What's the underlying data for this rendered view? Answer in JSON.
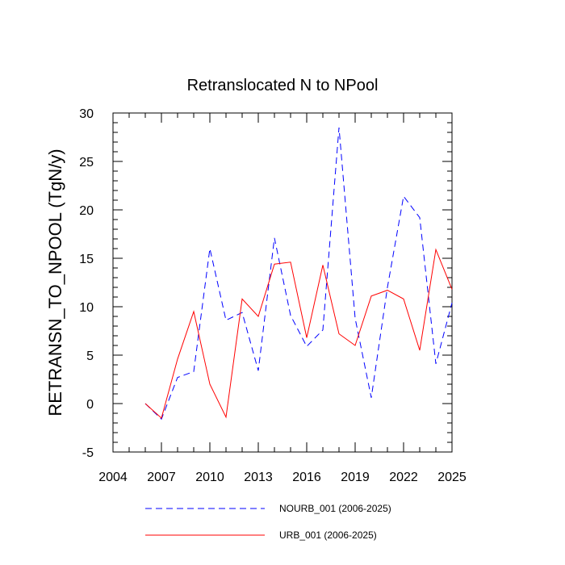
{
  "chart_data": {
    "type": "line",
    "title": "Retranslocated N to NPool",
    "xlabel": "",
    "ylabel": "RETRANSN_TO_NPOOL  (TgN/y)",
    "xlim": [
      2004,
      2025
    ],
    "ylim": [
      -5,
      30
    ],
    "xticks": [
      2004,
      2007,
      2010,
      2013,
      2016,
      2019,
      2022,
      2025
    ],
    "yticks": [
      -5,
      0,
      5,
      10,
      15,
      20,
      25,
      30
    ],
    "x": [
      2006,
      2007,
      2008,
      2009,
      2010,
      2011,
      2012,
      2013,
      2014,
      2015,
      2016,
      2017,
      2018,
      2019,
      2020,
      2021,
      2022,
      2023,
      2024,
      2025
    ],
    "series": [
      {
        "name": "NOURB_001 (2006-2025)",
        "color": "#0000ff",
        "dash": "dashed",
        "values": [
          0.0,
          -1.6,
          2.7,
          3.3,
          16.0,
          8.6,
          9.4,
          3.4,
          17.1,
          9.1,
          5.9,
          7.6,
          28.5,
          8.8,
          0.6,
          12.0,
          21.4,
          19.2,
          4.1,
          10.4
        ]
      },
      {
        "name": "URB_001 (2006-2025)",
        "color": "#ff0000",
        "dash": "solid",
        "values": [
          0.0,
          -1.5,
          4.6,
          9.5,
          2.0,
          -1.4,
          10.8,
          9.0,
          14.4,
          14.6,
          6.8,
          14.3,
          7.2,
          6.0,
          11.1,
          11.7,
          10.8,
          5.5,
          15.9,
          11.8
        ]
      }
    ],
    "legend_position": "bottom"
  }
}
